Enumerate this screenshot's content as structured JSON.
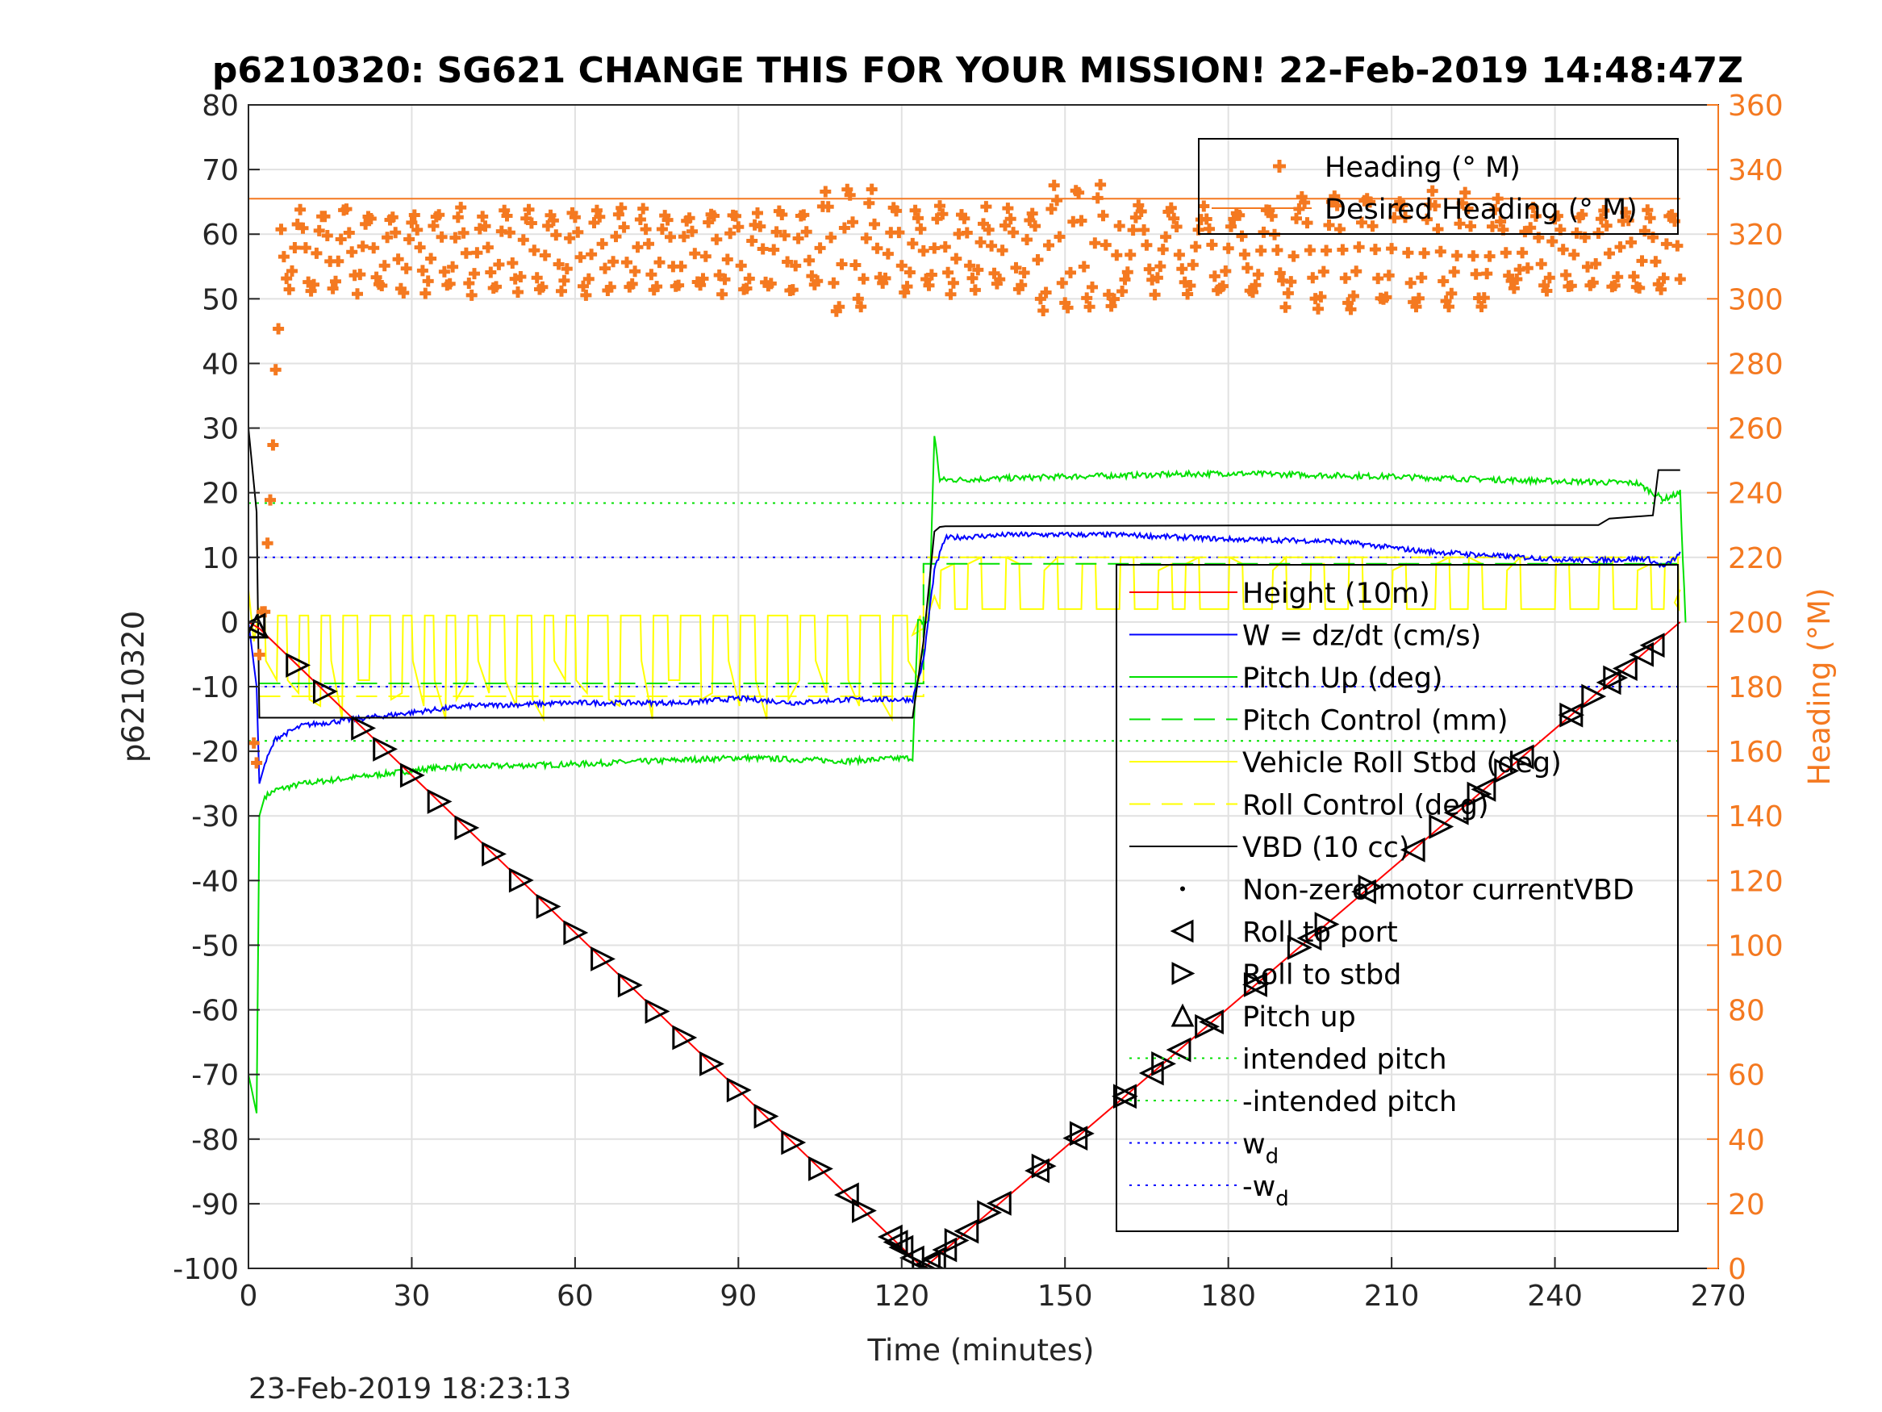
{
  "chart_data": {
    "type": "line",
    "title": "p6210320: SG621 CHANGE THIS FOR YOUR MISSION! 22-Feb-2019 14:48:47Z",
    "xlabel": "Time (minutes)",
    "ylabel": "p6210320",
    "y2label": "Heading (°M)",
    "footer_timestamp": "23-Feb-2019 18:23:13",
    "xlim": [
      0,
      270
    ],
    "ylim": [
      -100,
      80
    ],
    "y2lim": [
      0,
      360
    ],
    "xticks": [
      "0",
      "30",
      "60",
      "90",
      "120",
      "150",
      "180",
      "210",
      "240",
      "270"
    ],
    "yticks": [
      "80",
      "70",
      "60",
      "50",
      "40",
      "30",
      "20",
      "10",
      "0",
      "-10",
      "-20",
      "-30",
      "-40",
      "-50",
      "-60",
      "-70",
      "-80",
      "-90",
      "-100"
    ],
    "y2ticks": [
      "360",
      "340",
      "320",
      "300",
      "280",
      "260",
      "240",
      "220",
      "200",
      "180",
      "160",
      "140",
      "120",
      "100",
      "80",
      "60",
      "40",
      "20",
      "0"
    ],
    "grid": true,
    "colors": {
      "heading": "#f47920",
      "height": "#ff0000",
      "w": "#0000ff",
      "pitch": "#00e000",
      "roll": "#ffff00",
      "vbd": "#000000"
    },
    "legend_heading": {
      "placement": "top-right",
      "entries": [
        "Heading (° M)",
        "Desired Heading (° M)"
      ]
    },
    "legend_main": {
      "placement": "right",
      "entries": [
        "Height (10m)",
        "W = dz/dt (cm/s)",
        "Pitch Up (deg)",
        "Pitch Control (mm)",
        "Vehicle Roll Stbd (deg)",
        "Roll Control (deg)",
        "VBD (10 cc)",
        "Non-zero motor currentVBD",
        "Roll to port",
        "Roll to stbd",
        "Pitch up",
        "intended pitch",
        "-intended pitch",
        "w",
        "-w"
      ],
      "wd_subscript": "d"
    },
    "series": [
      {
        "name": "Height (10m)",
        "axis": "left",
        "x": [
          0,
          2,
          124,
          263
        ],
        "y": [
          0,
          -1,
          -100,
          0
        ]
      },
      {
        "name": "W = dz/dt (cm/s)",
        "axis": "left",
        "x": [
          0,
          1.5,
          2,
          3,
          5,
          10,
          20,
          40,
          60,
          80,
          90,
          100,
          110,
          122,
          124,
          126,
          128,
          140,
          160,
          180,
          200,
          215,
          230,
          245,
          257,
          260,
          263
        ],
        "y": [
          0,
          -10,
          -25,
          -22,
          -18,
          -16,
          -15,
          -13,
          -12.5,
          -12.5,
          -11.8,
          -12.5,
          -12,
          -12,
          -6,
          8,
          13,
          13.5,
          13.5,
          12.8,
          12.5,
          11,
          10.2,
          9.5,
          9.8,
          8.5,
          10.5
        ]
      },
      {
        "name": "Pitch Up (deg)",
        "axis": "left",
        "x": [
          0,
          1.5,
          2,
          3,
          5,
          10,
          20,
          30,
          35,
          60,
          90,
          110,
          122,
          123,
          125,
          126,
          127,
          130,
          150,
          180,
          210,
          230,
          255,
          260,
          263,
          264
        ],
        "y": [
          -70,
          -76,
          -30,
          -27,
          -26,
          -25,
          -24,
          -23,
          -22.5,
          -22,
          -21,
          -21.5,
          -21,
          0,
          0,
          29,
          22,
          22,
          22.5,
          23,
          22.5,
          22,
          21.5,
          19,
          20,
          0
        ]
      },
      {
        "name": "Pitch Control (mm)",
        "axis": "left",
        "x": [
          2,
          124,
          124,
          263
        ],
        "y": [
          -9.5,
          -9.5,
          9,
          9
        ]
      },
      {
        "name": "Vehicle Roll Stbd (deg)",
        "axis": "left",
        "x": [],
        "y": []
      },
      {
        "name": "Roll Control (deg)",
        "axis": "left",
        "x": [
          2,
          124,
          124,
          263
        ],
        "y": [
          -11.5,
          -11.5,
          10,
          10
        ]
      },
      {
        "name": "VBD (10 cc)",
        "axis": "left",
        "x": [
          0,
          1.5,
          2,
          122,
          124,
          126,
          127,
          128,
          210,
          248,
          250,
          258,
          259,
          263
        ],
        "y": [
          30,
          17,
          -14.8,
          -14.8,
          -3,
          14,
          14.7,
          14.8,
          15,
          15,
          16,
          16.5,
          23.5,
          23.5
        ]
      },
      {
        "name": "intended pitch",
        "axis": "left",
        "x": [
          0,
          263
        ],
        "y": [
          18.4,
          18.4
        ]
      },
      {
        "name": "-intended pitch",
        "axis": "left",
        "x": [
          0,
          263
        ],
        "y": [
          -18.4,
          -18.4
        ]
      },
      {
        "name": "w",
        "axis": "left",
        "x": [
          0,
          263
        ],
        "y": [
          10,
          10
        ]
      },
      {
        "name": "-w",
        "axis": "left",
        "x": [
          0,
          263
        ],
        "y": [
          -10,
          -10
        ]
      },
      {
        "name": "Heading (° M)",
        "axis": "right",
        "x": [],
        "y": []
      },
      {
        "name": "Desired Heading (° M)",
        "axis": "right",
        "x": [
          0,
          263
        ],
        "y": [
          331,
          331
        ]
      }
    ],
    "markers": {
      "roll_to_port_x": [
        1,
        110,
        118,
        119,
        120,
        122,
        125,
        126,
        128,
        132,
        138,
        145,
        152,
        161,
        166,
        171,
        177,
        185,
        195,
        205,
        214,
        222,
        227,
        234,
        243,
        250,
        253,
        256,
        258
      ],
      "roll_to_stbd_x": [
        9,
        14,
        21,
        25,
        30,
        35,
        40,
        45,
        50,
        55,
        60,
        65,
        70,
        75,
        80,
        85,
        90,
        95,
        100,
        105,
        113,
        124,
        130,
        136,
        146,
        153,
        161,
        168,
        176,
        185,
        193,
        198,
        206,
        219,
        226,
        231,
        243,
        247,
        251
      ],
      "pitch_up_x": [
        1.5
      ]
    }
  }
}
